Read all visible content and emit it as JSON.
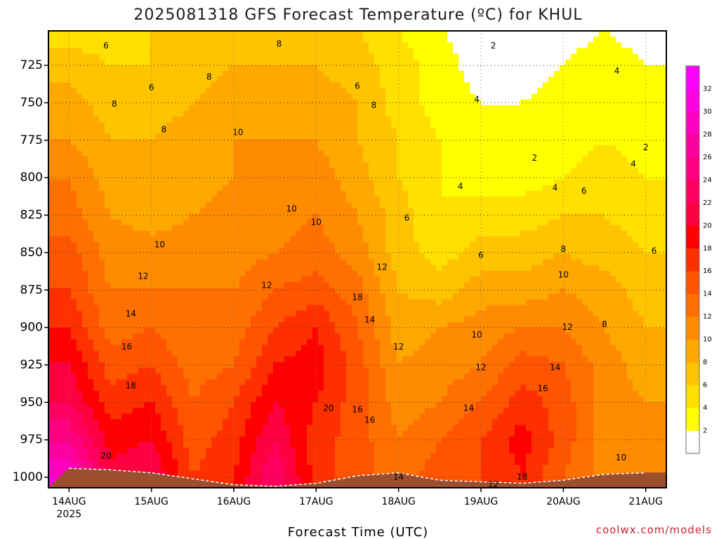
{
  "chart_data": {
    "type": "heatmap",
    "title": "2025081318 GFS Forecast Temperature (ºC) for KHUL",
    "xlabel": "Forecast Time (UTC)",
    "ylabel": "",
    "credit": "coolwx.com/models",
    "y_axis": {
      "unit": "hPa",
      "inverted": true,
      "ylim": [
        1007,
        702
      ],
      "ticks": [
        "725",
        "750",
        "775",
        "800",
        "825",
        "850",
        "875",
        "900",
        "925",
        "950",
        "975",
        "1000"
      ]
    },
    "x_axis": {
      "ticks": [
        "14AUG",
        "15AUG",
        "16AUG",
        "17AUG",
        "18AUG",
        "19AUG",
        "20AUG",
        "21AUG"
      ],
      "first_tick_sublabel": "2025",
      "xlim": [
        -0.25,
        7.25
      ]
    },
    "grid": "dotted",
    "colorbar": {
      "levels": [
        2,
        4,
        6,
        8,
        10,
        12,
        14,
        16,
        18,
        20,
        22,
        24,
        26,
        28,
        30,
        32
      ],
      "tick_labels": [
        "2",
        "4",
        "6",
        "8",
        "10",
        "12",
        "14",
        "16",
        "18",
        "20",
        "22",
        "24",
        "26",
        "28",
        "30",
        "32"
      ],
      "colors": [
        "#ffffff",
        "#ffff00",
        "#ffe000",
        "#ffc400",
        "#ffa800",
        "#ff8c00",
        "#ff7000",
        "#ff5400",
        "#ff3000",
        "#ff0000",
        "#ff0040",
        "#ff0060",
        "#ff0080",
        "#ff00a0",
        "#ff00c0",
        "#ff00e0",
        "#ff00ff"
      ]
    },
    "pressure_levels": [
      700,
      725,
      750,
      775,
      800,
      825,
      850,
      875,
      900,
      925,
      950,
      975,
      1000
    ],
    "times_days": [
      0,
      0.5,
      1,
      1.5,
      2,
      2.5,
      3,
      3.5,
      4,
      4.5,
      5,
      5.5,
      6,
      6.5,
      7
    ],
    "temperature_c": [
      [
        5,
        5,
        6,
        7,
        7,
        8,
        7,
        6,
        4,
        2,
        1,
        0,
        1,
        2,
        1
      ],
      [
        7,
        6,
        6,
        7,
        8,
        8,
        8,
        7,
        5,
        3,
        1,
        1,
        2,
        3,
        2
      ],
      [
        9,
        7,
        7,
        8,
        9,
        9,
        9,
        8,
        5,
        3,
        2,
        2,
        3,
        3,
        2
      ],
      [
        10,
        8,
        8,
        9,
        10,
        10,
        10,
        8,
        6,
        4,
        2,
        2,
        3,
        4,
        3
      ],
      [
        12,
        9,
        9,
        9,
        10,
        10,
        11,
        9,
        6,
        4,
        3,
        3,
        4,
        5,
        4
      ],
      [
        13,
        10,
        9,
        10,
        11,
        11,
        12,
        10,
        7,
        4,
        5,
        5,
        6,
        6,
        5
      ],
      [
        15,
        11,
        11,
        11,
        11,
        12,
        13,
        11,
        7,
        5,
        7,
        7,
        8,
        7,
        6
      ],
      [
        16,
        12,
        12,
        12,
        12,
        14,
        15,
        13,
        8,
        7,
        9,
        9,
        10,
        9,
        7
      ],
      [
        18,
        13,
        14,
        12,
        13,
        16,
        18,
        14,
        9,
        10,
        11,
        12,
        12,
        10,
        8
      ],
      [
        20,
        15,
        16,
        13,
        14,
        18,
        19,
        15,
        10,
        11,
        12,
        15,
        14,
        11,
        9
      ],
      [
        22,
        17,
        18,
        14,
        16,
        20,
        18,
        15,
        11,
        12,
        14,
        17,
        15,
        11,
        10
      ],
      [
        26,
        19,
        20,
        15,
        17,
        22,
        17,
        15,
        12,
        14,
        16,
        19,
        15,
        11,
        10
      ],
      [
        30,
        21,
        22,
        16,
        18,
        24,
        17,
        15,
        13,
        15,
        16,
        18,
        14,
        11,
        10
      ]
    ],
    "surface_pressure_hpa": [
      994,
      995,
      997,
      1001,
      1005,
      1006,
      1004,
      999,
      997,
      1002,
      1003,
      1004,
      1002,
      998,
      997
    ],
    "contour_labels": [
      {
        "t": 0.45,
        "p": 712,
        "v": "6"
      },
      {
        "t": 2.55,
        "p": 711,
        "v": "8"
      },
      {
        "t": 5.15,
        "p": 712,
        "v": "2"
      },
      {
        "t": 1.0,
        "p": 740,
        "v": "6"
      },
      {
        "t": 1.7,
        "p": 733,
        "v": "8"
      },
      {
        "t": 3.5,
        "p": 739,
        "v": "6"
      },
      {
        "t": 6.65,
        "p": 729,
        "v": "4"
      },
      {
        "t": 0.55,
        "p": 751,
        "v": "8"
      },
      {
        "t": 3.7,
        "p": 752,
        "v": "8"
      },
      {
        "t": 4.95,
        "p": 748,
        "v": "4"
      },
      {
        "t": 1.15,
        "p": 768,
        "v": "8"
      },
      {
        "t": 2.05,
        "p": 770,
        "v": "10"
      },
      {
        "t": 5.65,
        "p": 787,
        "v": "2"
      },
      {
        "t": 7.0,
        "p": 780,
        "v": "2"
      },
      {
        "t": 6.85,
        "p": 791,
        "v": "4"
      },
      {
        "t": 4.75,
        "p": 806,
        "v": "4"
      },
      {
        "t": 5.9,
        "p": 807,
        "v": "4"
      },
      {
        "t": 6.25,
        "p": 809,
        "v": "6"
      },
      {
        "t": 2.7,
        "p": 821,
        "v": "10"
      },
      {
        "t": 3.0,
        "p": 830,
        "v": "10"
      },
      {
        "t": 4.1,
        "p": 827,
        "v": "6"
      },
      {
        "t": 1.1,
        "p": 845,
        "v": "10"
      },
      {
        "t": 6.0,
        "p": 848,
        "v": "8"
      },
      {
        "t": 7.1,
        "p": 849,
        "v": "6"
      },
      {
        "t": 0.9,
        "p": 866,
        "v": "12"
      },
      {
        "t": 3.8,
        "p": 860,
        "v": "12"
      },
      {
        "t": 5.0,
        "p": 852,
        "v": "6"
      },
      {
        "t": 2.4,
        "p": 872,
        "v": "12"
      },
      {
        "t": 6.0,
        "p": 865,
        "v": "10"
      },
      {
        "t": 0.75,
        "p": 891,
        "v": "14"
      },
      {
        "t": 3.5,
        "p": 880,
        "v": "18"
      },
      {
        "t": 3.65,
        "p": 895,
        "v": "14"
      },
      {
        "t": 4.95,
        "p": 905,
        "v": "10"
      },
      {
        "t": 6.05,
        "p": 900,
        "v": "12"
      },
      {
        "t": 6.5,
        "p": 898,
        "v": "8"
      },
      {
        "t": 0.7,
        "p": 913,
        "v": "16"
      },
      {
        "t": 4.0,
        "p": 913,
        "v": "12"
      },
      {
        "t": 5.0,
        "p": 927,
        "v": "12"
      },
      {
        "t": 5.9,
        "p": 927,
        "v": "14"
      },
      {
        "t": 0.75,
        "p": 939,
        "v": "18"
      },
      {
        "t": 5.75,
        "p": 941,
        "v": "16"
      },
      {
        "t": 3.15,
        "p": 954,
        "v": "20"
      },
      {
        "t": 3.5,
        "p": 955,
        "v": "16"
      },
      {
        "t": 3.65,
        "p": 962,
        "v": "16"
      },
      {
        "t": 4.85,
        "p": 954,
        "v": "14"
      },
      {
        "t": 0.45,
        "p": 986,
        "v": "20"
      },
      {
        "t": 6.7,
        "p": 987,
        "v": "10"
      },
      {
        "t": 4.0,
        "p": 1000,
        "v": "14"
      },
      {
        "t": 5.5,
        "p": 1000,
        "v": "18"
      },
      {
        "t": 5.15,
        "p": 1005,
        "v": "12"
      }
    ]
  }
}
